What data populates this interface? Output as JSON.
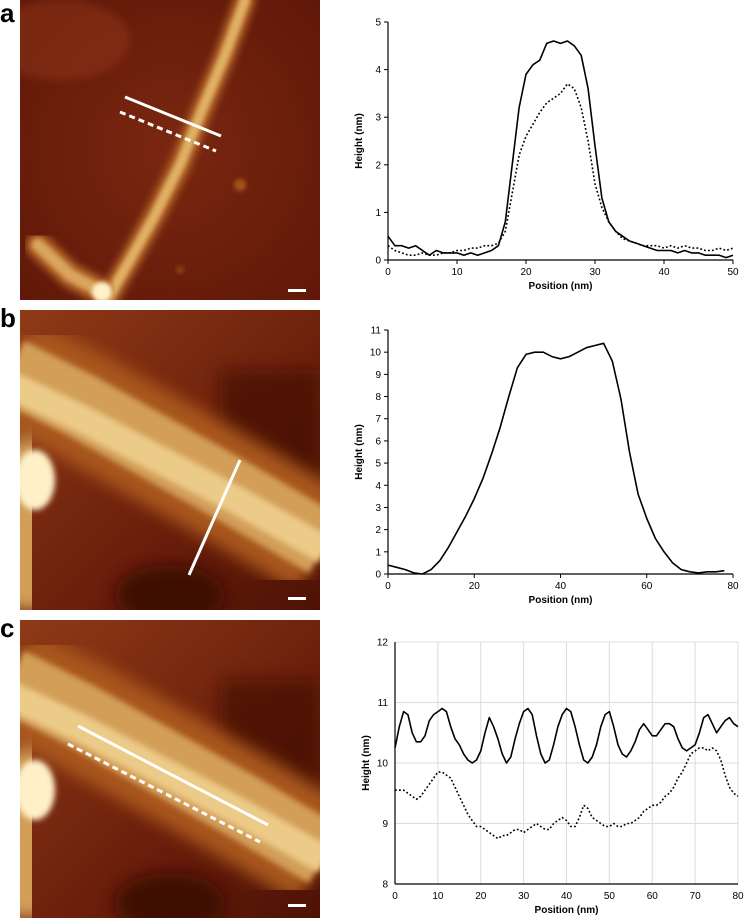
{
  "panels": [
    {
      "letter": "a"
    },
    {
      "letter": "b"
    },
    {
      "letter": "c"
    }
  ],
  "colors": {
    "afm_dark": "#6e1d0c",
    "afm_mid": "#a5521c",
    "afm_bright": "#e8c27a",
    "afm_highlight": "#fff0c8",
    "profile_line": "#ffffff",
    "trace": "#000000"
  },
  "chart_data": [
    {
      "type": "line",
      "xlabel": "Position (nm)",
      "ylabel": "Height (nm)",
      "xlim": [
        0,
        50
      ],
      "ylim": [
        0,
        5
      ],
      "xticks": [
        "0",
        "10",
        "20",
        "30",
        "40",
        "50"
      ],
      "yticks": [
        "0",
        "1",
        "2",
        "3",
        "4",
        "5"
      ],
      "grid": false,
      "series": [
        {
          "style": "solid",
          "x": [
            0,
            1,
            2,
            3,
            4,
            5,
            6,
            7,
            8,
            9,
            10,
            11,
            12,
            13,
            14,
            15,
            16,
            17,
            18,
            19,
            20,
            21,
            22,
            23,
            24,
            25,
            26,
            27,
            28,
            29,
            30,
            31,
            32,
            33,
            34,
            35,
            36,
            37,
            38,
            39,
            40,
            41,
            42,
            43,
            44,
            45,
            46,
            47,
            48,
            49,
            50
          ],
          "y": [
            0.5,
            0.3,
            0.3,
            0.25,
            0.3,
            0.2,
            0.1,
            0.2,
            0.15,
            0.15,
            0.15,
            0.1,
            0.15,
            0.1,
            0.15,
            0.2,
            0.3,
            0.8,
            2.0,
            3.2,
            3.9,
            4.1,
            4.2,
            4.55,
            4.6,
            4.55,
            4.6,
            4.5,
            4.3,
            3.6,
            2.4,
            1.3,
            0.8,
            0.6,
            0.5,
            0.4,
            0.35,
            0.3,
            0.25,
            0.2,
            0.2,
            0.2,
            0.15,
            0.2,
            0.15,
            0.15,
            0.1,
            0.1,
            0.1,
            0.05,
            0.1
          ]
        },
        {
          "style": "dotted",
          "x": [
            0,
            1,
            2,
            3,
            4,
            5,
            6,
            7,
            8,
            9,
            10,
            11,
            12,
            13,
            14,
            15,
            16,
            17,
            18,
            19,
            20,
            21,
            22,
            23,
            24,
            25,
            26,
            27,
            28,
            29,
            30,
            31,
            32,
            33,
            34,
            35,
            36,
            37,
            38,
            39,
            40,
            41,
            42,
            43,
            44,
            45,
            46,
            47,
            48,
            49,
            50
          ],
          "y": [
            0.3,
            0.2,
            0.15,
            0.1,
            0.1,
            0.15,
            0.1,
            0.1,
            0.15,
            0.15,
            0.2,
            0.2,
            0.25,
            0.25,
            0.3,
            0.3,
            0.35,
            0.6,
            1.4,
            2.2,
            2.6,
            2.85,
            3.1,
            3.3,
            3.4,
            3.5,
            3.7,
            3.6,
            3.2,
            2.5,
            1.6,
            1.1,
            0.8,
            0.6,
            0.45,
            0.4,
            0.35,
            0.3,
            0.3,
            0.3,
            0.25,
            0.3,
            0.25,
            0.3,
            0.25,
            0.25,
            0.2,
            0.2,
            0.25,
            0.2,
            0.25
          ]
        }
      ]
    },
    {
      "type": "line",
      "xlabel": "Position (nm)",
      "ylabel": "Height (nm)",
      "xlim": [
        0,
        80
      ],
      "ylim": [
        0,
        11
      ],
      "xticks": [
        "0",
        "20",
        "40",
        "60",
        "80"
      ],
      "yticks": [
        "0",
        "1",
        "2",
        "3",
        "4",
        "5",
        "6",
        "7",
        "8",
        "9",
        "10",
        "11"
      ],
      "grid": false,
      "series": [
        {
          "style": "solid",
          "x": [
            0,
            2,
            4,
            6,
            8,
            10,
            12,
            14,
            16,
            18,
            20,
            22,
            24,
            26,
            28,
            30,
            32,
            34,
            36,
            38,
            40,
            42,
            44,
            46,
            48,
            50,
            52,
            54,
            56,
            58,
            60,
            62,
            64,
            66,
            68,
            70,
            72,
            74,
            76,
            78
          ],
          "y": [
            0.4,
            0.3,
            0.2,
            0.05,
            0.0,
            0.2,
            0.6,
            1.2,
            1.9,
            2.6,
            3.4,
            4.3,
            5.4,
            6.6,
            8.0,
            9.3,
            9.9,
            10.0,
            10.0,
            9.8,
            9.7,
            9.8,
            10.0,
            10.2,
            10.3,
            10.4,
            9.6,
            7.9,
            5.5,
            3.6,
            2.5,
            1.6,
            1.0,
            0.5,
            0.2,
            0.1,
            0.05,
            0.1,
            0.1,
            0.15
          ]
        }
      ]
    },
    {
      "type": "line",
      "xlabel": "Position (nm)",
      "ylabel": "Height (nm)",
      "xlim": [
        0,
        80
      ],
      "ylim": [
        8,
        12
      ],
      "xticks": [
        "0",
        "10",
        "20",
        "30",
        "40",
        "50",
        "60",
        "70",
        "80"
      ],
      "yticks": [
        "8",
        "9",
        "10",
        "11",
        "12"
      ],
      "grid": true,
      "series": [
        {
          "style": "solid",
          "x": [
            0,
            1,
            2,
            3,
            4,
            5,
            6,
            7,
            8,
            9,
            10,
            11,
            12,
            13,
            14,
            15,
            16,
            17,
            18,
            19,
            20,
            21,
            22,
            23,
            24,
            25,
            26,
            27,
            28,
            29,
            30,
            31,
            32,
            33,
            34,
            35,
            36,
            37,
            38,
            39,
            40,
            41,
            42,
            43,
            44,
            45,
            46,
            47,
            48,
            49,
            50,
            51,
            52,
            53,
            54,
            55,
            56,
            57,
            58,
            59,
            60,
            61,
            62,
            63,
            64,
            65,
            66,
            67,
            68,
            69,
            70,
            71,
            72,
            73,
            74,
            75,
            76,
            77,
            78,
            79,
            80
          ],
          "y": [
            10.25,
            10.6,
            10.85,
            10.8,
            10.5,
            10.35,
            10.35,
            10.45,
            10.7,
            10.8,
            10.85,
            10.9,
            10.85,
            10.6,
            10.4,
            10.3,
            10.15,
            10.05,
            10.0,
            10.05,
            10.2,
            10.5,
            10.75,
            10.6,
            10.4,
            10.15,
            10.0,
            10.1,
            10.4,
            10.65,
            10.85,
            10.9,
            10.8,
            10.45,
            10.15,
            10.0,
            10.05,
            10.3,
            10.6,
            10.8,
            10.9,
            10.85,
            10.6,
            10.3,
            10.05,
            10.0,
            10.1,
            10.3,
            10.6,
            10.8,
            10.85,
            10.6,
            10.3,
            10.15,
            10.1,
            10.2,
            10.35,
            10.55,
            10.65,
            10.55,
            10.45,
            10.45,
            10.55,
            10.65,
            10.65,
            10.6,
            10.4,
            10.25,
            10.2,
            10.25,
            10.3,
            10.5,
            10.75,
            10.8,
            10.65,
            10.5,
            10.6,
            10.7,
            10.75,
            10.65,
            10.6
          ]
        },
        {
          "style": "dotted",
          "x": [
            0,
            1,
            2,
            3,
            4,
            5,
            6,
            7,
            8,
            9,
            10,
            11,
            12,
            13,
            14,
            15,
            16,
            17,
            18,
            19,
            20,
            21,
            22,
            23,
            24,
            25,
            26,
            27,
            28,
            29,
            30,
            31,
            32,
            33,
            34,
            35,
            36,
            37,
            38,
            39,
            40,
            41,
            42,
            43,
            44,
            45,
            46,
            47,
            48,
            49,
            50,
            51,
            52,
            53,
            54,
            55,
            56,
            57,
            58,
            59,
            60,
            61,
            62,
            63,
            64,
            65,
            66,
            67,
            68,
            69,
            70,
            71,
            72,
            73,
            74,
            75,
            76,
            77,
            78,
            79,
            80
          ],
          "y": [
            9.55,
            9.55,
            9.55,
            9.5,
            9.45,
            9.4,
            9.45,
            9.55,
            9.65,
            9.75,
            9.85,
            9.85,
            9.8,
            9.75,
            9.6,
            9.45,
            9.3,
            9.15,
            9.05,
            8.95,
            8.95,
            8.9,
            8.85,
            8.8,
            8.75,
            8.8,
            8.8,
            8.85,
            8.9,
            8.9,
            8.85,
            8.9,
            8.95,
            9.0,
            8.95,
            8.9,
            8.9,
            9.0,
            9.05,
            9.1,
            9.05,
            8.95,
            8.95,
            9.1,
            9.3,
            9.25,
            9.1,
            9.05,
            9.0,
            8.95,
            8.95,
            9.0,
            8.95,
            8.95,
            9.0,
            9.0,
            9.05,
            9.1,
            9.2,
            9.25,
            9.3,
            9.3,
            9.35,
            9.45,
            9.5,
            9.6,
            9.75,
            9.85,
            10.0,
            10.15,
            10.2,
            10.25,
            10.25,
            10.2,
            10.25,
            10.2,
            10.05,
            9.8,
            9.6,
            9.5,
            9.45
          ]
        }
      ]
    }
  ]
}
